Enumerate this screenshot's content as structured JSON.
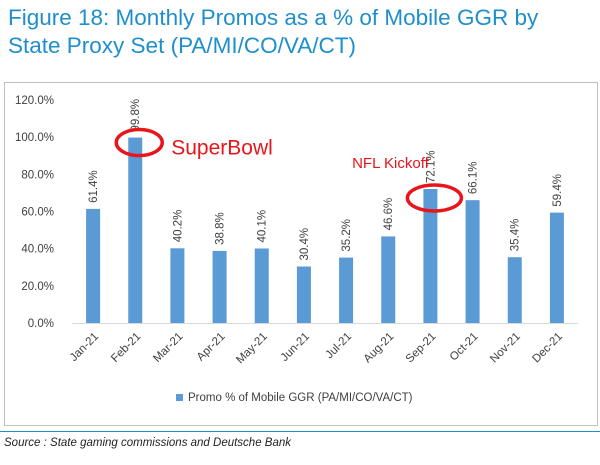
{
  "title": "Figure 18: Monthly Promos as a % of Mobile GGR by State Proxy Set (PA/MI/CO/VA/CT)",
  "source": "Source : State gaming commissions and Deutsche Bank",
  "colors": {
    "bar": "#5b9bd5",
    "title": "#1f8fcc",
    "circle": "#e8151b",
    "annotation": "#e8151b"
  },
  "annotations": {
    "superbowl": "SuperBowl",
    "nfl": "NFL Kickoff"
  },
  "chart_data": {
    "type": "bar",
    "title": "",
    "xlabel": "",
    "ylabel": "",
    "categories": [
      "Jan-21",
      "Feb-21",
      "Mar-21",
      "Apr-21",
      "May-21",
      "Jun-21",
      "Jul-21",
      "Aug-21",
      "Sep-21",
      "Oct-21",
      "Nov-21",
      "Dec-21"
    ],
    "series": [
      {
        "name": "Promo % of Mobile GGR (PA/MI/CO/VA/CT)",
        "values": [
          61.4,
          99.8,
          40.2,
          38.8,
          40.1,
          30.4,
          35.2,
          46.6,
          72.1,
          66.1,
          35.4,
          59.4
        ],
        "labels": [
          "61.4%",
          "99.8%",
          "40.2%",
          "38.8%",
          "40.1%",
          "30.4%",
          "35.2%",
          "46.6%",
          "72.1%",
          "66.1%",
          "35.4%",
          "59.4%"
        ]
      }
    ],
    "ylim": [
      0,
      120
    ],
    "yticks": [
      "0.0%",
      "20.0%",
      "40.0%",
      "60.0%",
      "80.0%",
      "100.0%",
      "120.0%"
    ],
    "grid": false,
    "legend": "bottom"
  }
}
